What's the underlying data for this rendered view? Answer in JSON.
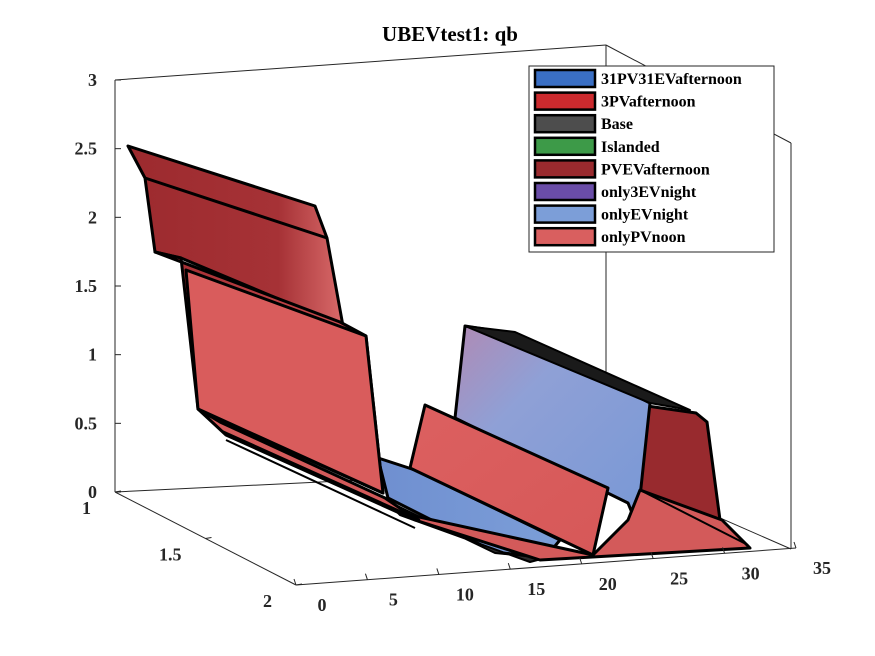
{
  "chart_data": {
    "type": "surface3d",
    "title": "UBEVtest1: qb",
    "x_ticks": [
      "0",
      "5",
      "10",
      "15",
      "20",
      "25",
      "30",
      "35"
    ],
    "y_ticks": [
      "1",
      "1.5",
      "2"
    ],
    "z_ticks": [
      "0",
      "0.5",
      "1",
      "1.5",
      "2",
      "2.5",
      "3"
    ],
    "xlim": [
      0,
      35
    ],
    "ylim": [
      1,
      2
    ],
    "zlim": [
      0,
      3
    ],
    "legend_position": "top-right",
    "series": [
      {
        "name": "31PV31EVafternoon",
        "color": "#3a6fc4"
      },
      {
        "name": "3PVafternoon",
        "color": "#cc2a2e"
      },
      {
        "name": "Base",
        "color": "#4d4d4d"
      },
      {
        "name": "Islanded",
        "color": "#3d9a48"
      },
      {
        "name": "PVEVafternoon",
        "color": "#992a2e"
      },
      {
        "name": "only3EVnight",
        "color": "#6a4da8"
      },
      {
        "name": "onlyEVnight",
        "color": "#7c9ed8"
      },
      {
        "name": "onlyPVnoon",
        "color": "#d95f5f"
      }
    ]
  }
}
